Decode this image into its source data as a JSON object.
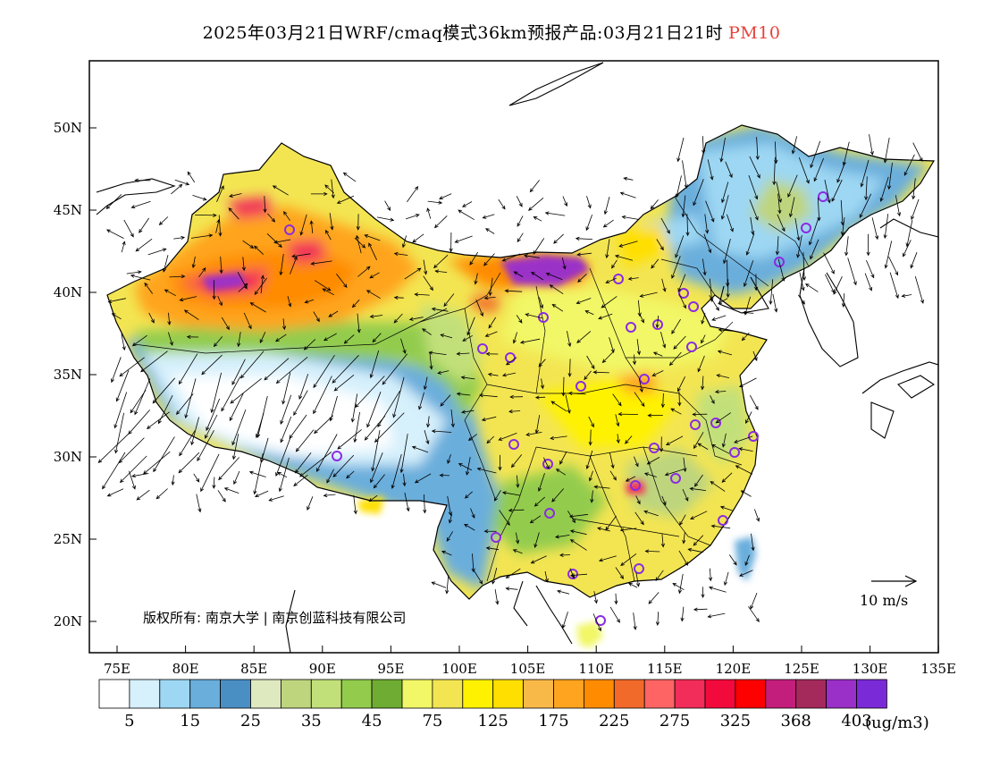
{
  "title": {
    "main": "2025年03月21日WRF/cmaq模式36km预报产品:03月21日21时",
    "pollutant": "PM10"
  },
  "map": {
    "lon_range": [
      73,
      135
    ],
    "lat_range": [
      18,
      54
    ],
    "lat_ticks": [
      "20N",
      "25N",
      "30N",
      "35N",
      "40N",
      "45N",
      "50N"
    ],
    "lon_ticks": [
      "75E",
      "80E",
      "85E",
      "90E",
      "95E",
      "100E",
      "105E",
      "110E",
      "115E",
      "120E",
      "125E",
      "130E",
      "135E"
    ],
    "copyright": "版权所有: 南京大学 | 南京创蓝科技有限公司",
    "wind_scale_label": "10 m/s"
  },
  "colorbar": {
    "colors": [
      "#ffffff",
      "#d6f0fc",
      "#9dd7f3",
      "#6aaedc",
      "#4a8fc4",
      "#dfe9c0",
      "#bed57e",
      "#c2e07a",
      "#93cc4d",
      "#6fac33",
      "#f1f766",
      "#f3e552",
      "#fff200",
      "#ffdf00",
      "#f9b949",
      "#ffa41f",
      "#ff8b00",
      "#f26a2a",
      "#ff6464",
      "#f22d5a",
      "#f20a3c",
      "#ff0000",
      "#c41e7c",
      "#a52a5c",
      "#9b30c8",
      "#7b2ad8"
    ],
    "labels": [
      "5",
      "15",
      "25",
      "35",
      "45",
      "75",
      "125",
      "175",
      "225",
      "275",
      "325",
      "368",
      "403"
    ],
    "unit": "(ug/m3)"
  }
}
